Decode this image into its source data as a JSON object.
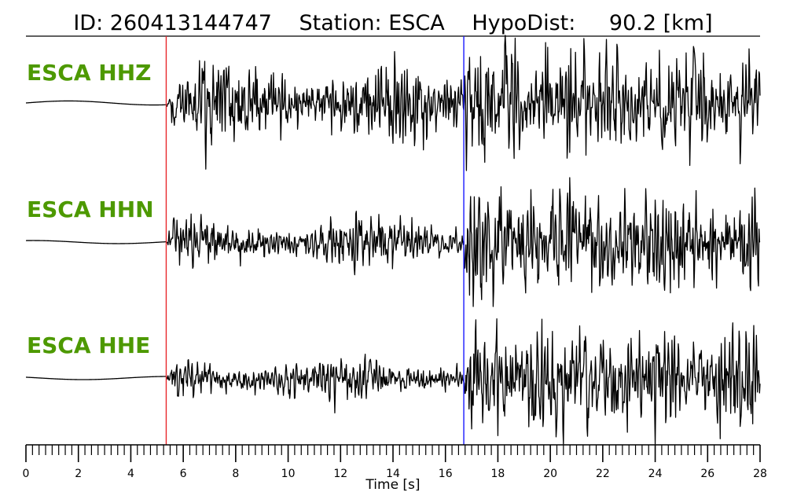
{
  "title": {
    "id_label": "ID:",
    "id_value": "260413144747",
    "station_label": "Station:",
    "station_value": "ESCA",
    "hypodist_label": "HypoDist:",
    "hypodist_value": "90.2",
    "hypodist_unit": "[km]"
  },
  "colors": {
    "channel_label": "#4d9900",
    "trace": "#000000",
    "p_pick": "#e8272c",
    "s_pick": "#1a1aff",
    "axis": "#000000"
  },
  "chart_data": {
    "type": "line",
    "xlabel": "Time [s]",
    "xlim": [
      0,
      28
    ],
    "x_major_ticks": [
      0,
      2,
      4,
      6,
      8,
      10,
      12,
      14,
      16,
      18,
      20,
      22,
      24,
      26,
      28
    ],
    "x_minor_step": 0.25,
    "picks": [
      {
        "phase": "P",
        "time": 5.35
      },
      {
        "phase": "S",
        "time": 16.7
      }
    ],
    "series": [
      {
        "name": "ESCA HHZ",
        "noise_amp": 0.05,
        "p_amp": 0.55,
        "s_amp": 1.0
      },
      {
        "name": "ESCA HHN",
        "noise_amp": 0.04,
        "p_amp": 0.35,
        "s_amp": 0.95
      },
      {
        "name": "ESCA HHE",
        "noise_amp": 0.04,
        "p_amp": 0.3,
        "s_amp": 1.0
      }
    ]
  }
}
